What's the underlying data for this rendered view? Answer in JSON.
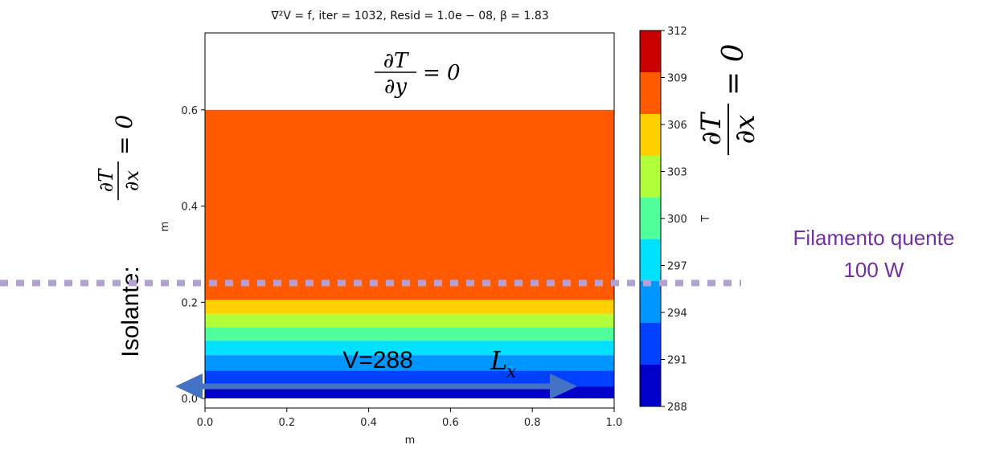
{
  "chart_data": {
    "type": "heatmap",
    "title": "∇²V = f, iter = 1032, Resid = 1.0e − 08, β = 1.83",
    "xlabel": "m",
    "ylabel": "m",
    "xlim": [
      0.0,
      1.0
    ],
    "ylim": [
      -0.02,
      0.76
    ],
    "x_ticks": [
      0.0,
      0.2,
      0.4,
      0.6,
      0.8,
      1.0
    ],
    "x_tick_labels": [
      "0.0",
      "0.2",
      "0.4",
      "0.6",
      "0.8",
      "1.0"
    ],
    "y_ticks": [
      0.0,
      0.2,
      0.4,
      0.6
    ],
    "y_tick_labels": [
      "0.0",
      "0.2",
      "0.4",
      "0.6"
    ],
    "domain": {
      "x": [
        0.0,
        1.0
      ],
      "y": [
        0.0,
        0.6
      ]
    },
    "bands": [
      {
        "y0": 0.0,
        "y1": 0.025,
        "level": 288
      },
      {
        "y0": 0.025,
        "y1": 0.058,
        "level": 291
      },
      {
        "y0": 0.058,
        "y1": 0.09,
        "level": 294
      },
      {
        "y0": 0.09,
        "y1": 0.12,
        "level": 297
      },
      {
        "y0": 0.12,
        "y1": 0.148,
        "level": 300
      },
      {
        "y0": 0.148,
        "y1": 0.176,
        "level": 303
      },
      {
        "y0": 0.176,
        "y1": 0.205,
        "level": 306
      },
      {
        "y0": 0.205,
        "y1": 0.6,
        "level": 309
      }
    ],
    "colorbar": {
      "label": "T",
      "min": 288,
      "max": 312,
      "ticks": [
        288,
        291,
        294,
        297,
        300,
        303,
        306,
        309,
        312
      ],
      "colors": [
        "#0000c8",
        "#0040ff",
        "#0096ff",
        "#00e0ff",
        "#50ff9a",
        "#b0ff3a",
        "#ffd000",
        "#ff5a00",
        "#c80000"
      ]
    }
  },
  "annotations": {
    "top_boundary": {
      "numerator": "∂T",
      "denominator": "∂y",
      "rhs": "= 0"
    },
    "left_boundary": {
      "numerator": "∂T",
      "denominator": "∂x",
      "rhs": "= 0"
    },
    "right_boundary": {
      "numerator": "∂T",
      "denominator": "∂x",
      "rhs": "= 0"
    },
    "left_label": "Isolante:",
    "bottom_condition": "V=288",
    "length_label": "L",
    "length_subscript": "x",
    "filament_line1": "Filamento quente",
    "filament_line2": "100 W",
    "filament_y": 0.24
  },
  "colors": {
    "arrow": "#4472c4",
    "dashed_line": "#b4a0d2",
    "filament_text": "#7030a0"
  }
}
